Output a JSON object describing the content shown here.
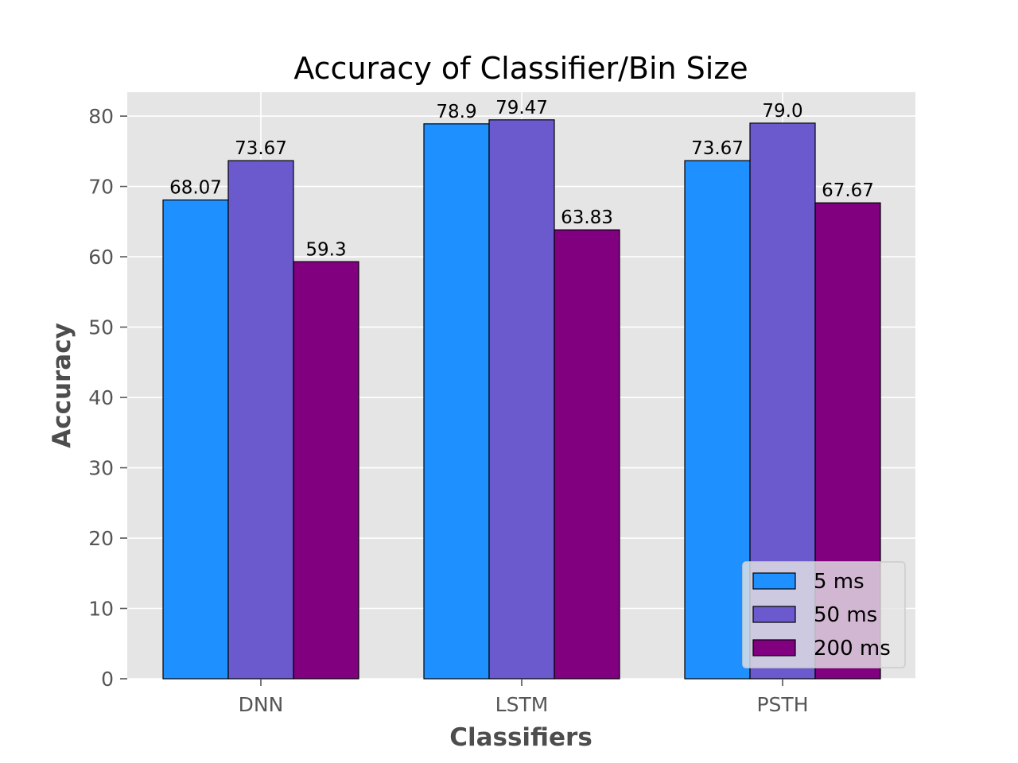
{
  "chart_data": {
    "type": "bar",
    "title": "Accuracy of Classifier/Bin Size",
    "xlabel": "Classifiers",
    "ylabel": "Accuracy",
    "categories": [
      "DNN",
      "LSTM",
      "PSTH"
    ],
    "series": [
      {
        "name": "5 ms",
        "values": [
          68.07,
          78.9,
          73.67
        ],
        "labels": [
          "68.07",
          "78.9",
          "73.67"
        ],
        "color": "#1e90ff"
      },
      {
        "name": "50 ms",
        "values": [
          73.67,
          79.47,
          79.0
        ],
        "labels": [
          "73.67",
          "79.47",
          "79.0"
        ],
        "color": "#6a5acd"
      },
      {
        "name": "200 ms",
        "values": [
          59.3,
          63.83,
          67.67
        ],
        "labels": [
          "59.3",
          "63.83",
          "67.67"
        ],
        "color": "#800080"
      }
    ],
    "ylim": [
      0,
      83.4
    ],
    "yticks": [
      0,
      10,
      20,
      30,
      40,
      50,
      60,
      70,
      80
    ],
    "ytick_labels": [
      "0",
      "10",
      "20",
      "30",
      "40",
      "50",
      "60",
      "70",
      "80"
    ],
    "grid": true,
    "legend_position": "lower-right",
    "style": {
      "plot_background": "#e5e5e5",
      "grid_color": "#ffffff",
      "bar_edge_color": "#000000"
    }
  }
}
